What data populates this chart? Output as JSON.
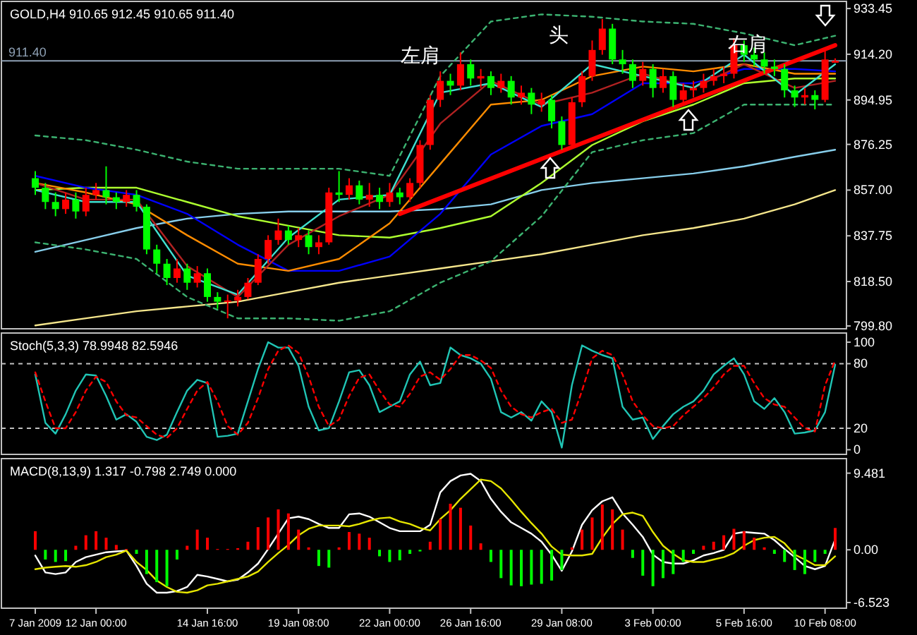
{
  "chart_data": [
    {
      "type": "candlestick",
      "title": "GOLD,H4  910.65 912.45 910.65 911.40",
      "tick_labels": "y",
      "categories": [
        null,
        null,
        null,
        null,
        null,
        null,
        null,
        null,
        null,
        null,
        null,
        null,
        null,
        null,
        null,
        null,
        null,
        null,
        null,
        null,
        null,
        null,
        null,
        null,
        null,
        null,
        null,
        null,
        null,
        null,
        null,
        null,
        null,
        null,
        null,
        null,
        null,
        null,
        null,
        null,
        null,
        null,
        null,
        null,
        null,
        null,
        null,
        null,
        null,
        null,
        null,
        null,
        null,
        null,
        null,
        null,
        null,
        null,
        null,
        null,
        null,
        null,
        null,
        null,
        null,
        null,
        null,
        null,
        null,
        null,
        null,
        null,
        null,
        null,
        null,
        null,
        null,
        null,
        null,
        null
      ],
      "ylim": [
        798.6,
        936.45
      ],
      "yticks": [
        {
          "value": 933.45,
          "label": "933.45"
        },
        {
          "value": 914.2,
          "label": "914.20"
        },
        {
          "value": 894.95,
          "label": "894.95"
        },
        {
          "value": 876.25,
          "label": "876.25"
        },
        {
          "value": 857,
          "label": "857.00"
        },
        {
          "value": 837.75,
          "label": "837.75"
        },
        {
          "value": 818.5,
          "label": "818.50"
        },
        {
          "value": 799.8,
          "label": "799.80"
        }
      ],
      "ohlc": [
        [
          862,
          865,
          855,
          858
        ],
        [
          858,
          860,
          849,
          852
        ],
        [
          852,
          856,
          846,
          849
        ],
        [
          849,
          856,
          847,
          853
        ],
        [
          853,
          856,
          845,
          848
        ],
        [
          848,
          858,
          846,
          855
        ],
        [
          855,
          860,
          853,
          857
        ],
        [
          857,
          867,
          851,
          854
        ],
        [
          854,
          856,
          849,
          852
        ],
        [
          852,
          857,
          850,
          855
        ],
        [
          855,
          857,
          848,
          850
        ],
        [
          850,
          851,
          830,
          832
        ],
        [
          832,
          834,
          822,
          826
        ],
        [
          826,
          828,
          817,
          820
        ],
        [
          820,
          828,
          818,
          824
        ],
        [
          824,
          826,
          815,
          818
        ],
        [
          818,
          825,
          816,
          822
        ],
        [
          822,
          824,
          810,
          812
        ],
        [
          812,
          814,
          807,
          810
        ],
        [
          810,
          813,
          803,
          810.5
        ],
        [
          810.5,
          815,
          808,
          812
        ],
        [
          812,
          820,
          811,
          818
        ],
        [
          818,
          830,
          817,
          828
        ],
        [
          828,
          838,
          826,
          836
        ],
        [
          836,
          845,
          834,
          840
        ],
        [
          840,
          842,
          834,
          836
        ],
        [
          836,
          841,
          833,
          838
        ],
        [
          838,
          840,
          830,
          833
        ],
        [
          833,
          838,
          830,
          835
        ],
        [
          835,
          858,
          834,
          856
        ],
        [
          856,
          865,
          852,
          855
        ],
        [
          855,
          862,
          853,
          859
        ],
        [
          859,
          861,
          851,
          853
        ],
        [
          853,
          860,
          850,
          855
        ],
        [
          855,
          858,
          849,
          852
        ],
        [
          852,
          860,
          850,
          856
        ],
        [
          856,
          858,
          851,
          854
        ],
        [
          854,
          862,
          852,
          860
        ],
        [
          860,
          878,
          858,
          876
        ],
        [
          876,
          897,
          874,
          895
        ],
        [
          895,
          907,
          892,
          903
        ],
        [
          903,
          906,
          897,
          901
        ],
        [
          901,
          915,
          899,
          910
        ],
        [
          910,
          912,
          901,
          904
        ],
        [
          904,
          908,
          900,
          905
        ],
        [
          905,
          907,
          897,
          900
        ],
        [
          900,
          906,
          898,
          903
        ],
        [
          903,
          905,
          893,
          896
        ],
        [
          896,
          901,
          893,
          898
        ],
        [
          898,
          900,
          889,
          893
        ],
        [
          893,
          898,
          890,
          895
        ],
        [
          895,
          897,
          883,
          886
        ],
        [
          886,
          888,
          874,
          876
        ],
        [
          876,
          896,
          875,
          894
        ],
        [
          894,
          907,
          892,
          905
        ],
        [
          905,
          920,
          903,
          916
        ],
        [
          916,
          929,
          914,
          925
        ],
        [
          925,
          927,
          910,
          912
        ],
        [
          912,
          916,
          906,
          910
        ],
        [
          910,
          912,
          900,
          903
        ],
        [
          903,
          911,
          901,
          908
        ],
        [
          908,
          910,
          896,
          900
        ],
        [
          900,
          908,
          898,
          905
        ],
        [
          905,
          907,
          892,
          895
        ],
        [
          895,
          902,
          893,
          899
        ],
        [
          899,
          903,
          896,
          900
        ],
        [
          900,
          906,
          898,
          903
        ],
        [
          903,
          908,
          901,
          905
        ],
        [
          905,
          909,
          902,
          906
        ],
        [
          906,
          921,
          904,
          918
        ],
        [
          918,
          920,
          911,
          914
        ],
        [
          914,
          917,
          909,
          912
        ],
        [
          912,
          915,
          906,
          909
        ],
        [
          909,
          912,
          905,
          908
        ],
        [
          908,
          910,
          896,
          899
        ],
        [
          899,
          901,
          892,
          896
        ],
        [
          896,
          900,
          893,
          897
        ],
        [
          897,
          899,
          891,
          895
        ],
        [
          895,
          916,
          894,
          912
        ],
        [
          910.65,
          912.45,
          910.65,
          911.4
        ]
      ],
      "colors": [
        "#00ff00",
        "#00ff00",
        "#00ff00",
        "#ff0000",
        "#00ff00",
        "#ff0000",
        "#ff0000",
        "#00ff00",
        "#00ff00",
        "#ff0000",
        "#00ff00",
        "#00ff00",
        "#00ff00",
        "#00ff00",
        "#ff0000",
        "#00ff00",
        "#ff0000",
        "#00ff00",
        "#00ff00",
        "#ff0000",
        "#ff0000",
        "#ff0000",
        "#ff0000",
        "#ff0000",
        "#ff0000",
        "#00ff00",
        "#ff0000",
        "#00ff00",
        "#ff0000",
        "#ff0000",
        "#00ff00",
        "#ff0000",
        "#00ff00",
        "#ff0000",
        "#00ff00",
        "#ff0000",
        "#00ff00",
        "#ff0000",
        "#ff0000",
        "#ff0000",
        "#ff0000",
        "#00ff00",
        "#ff0000",
        "#00ff00",
        "#ff0000",
        "#00ff00",
        "#ff0000",
        "#00ff00",
        "#ff0000",
        "#00ff00",
        "#ff0000",
        "#00ff00",
        "#00ff00",
        "#ff0000",
        "#ff0000",
        "#ff0000",
        "#ff0000",
        "#00ff00",
        "#00ff00",
        "#00ff00",
        "#ff0000",
        "#00ff00",
        "#ff0000",
        "#00ff00",
        "#ff0000",
        "#ff0000",
        "#ff0000",
        "#ff0000",
        "#ff0000",
        "#ff0000",
        "#00ff00",
        "#00ff00",
        "#00ff00",
        "#00ff00",
        "#00ff00",
        "#00ff00",
        "#ff0000",
        "#00ff00",
        "#ff0000",
        "#ff0000"
      ],
      "series": [
        {
          "type": "line",
          "color": "#f5e68c",
          "values": [
            800,
            null,
            null,
            null,
            null,
            803,
            null,
            null,
            null,
            null,
            806,
            null,
            null,
            null,
            null,
            808,
            null,
            null,
            null,
            null,
            810,
            null,
            null,
            null,
            null,
            814,
            null,
            null,
            null,
            null,
            818,
            null,
            null,
            null,
            null,
            821,
            null,
            null,
            null,
            null,
            824,
            null,
            null,
            null,
            null,
            827,
            null,
            null,
            null,
            null,
            830,
            null,
            null,
            null,
            null,
            834,
            null,
            null,
            null,
            null,
            838,
            null,
            null,
            null,
            null,
            841,
            null,
            null,
            null,
            null,
            845,
            null,
            null,
            null,
            null,
            851,
            null,
            null,
            null,
            857
          ]
        },
        {
          "type": "line",
          "color": "#87ceeb",
          "values": [
            831,
            null,
            null,
            null,
            null,
            836,
            null,
            null,
            null,
            null,
            841,
            null,
            null,
            null,
            null,
            845,
            null,
            null,
            null,
            null,
            847,
            null,
            null,
            null,
            null,
            848,
            null,
            null,
            null,
            null,
            848,
            null,
            null,
            null,
            null,
            848,
            null,
            null,
            null,
            null,
            849,
            null,
            null,
            null,
            null,
            851,
            null,
            null,
            null,
            null,
            857,
            null,
            null,
            null,
            null,
            860,
            null,
            null,
            null,
            null,
            862,
            null,
            null,
            null,
            null,
            864,
            null,
            null,
            null,
            null,
            867,
            null,
            null,
            null,
            null,
            871,
            null,
            null,
            null,
            874
          ]
        },
        {
          "type": "line",
          "color": "#adff2f",
          "values": [
            857,
            null,
            null,
            null,
            null,
            858,
            null,
            null,
            null,
            null,
            858,
            null,
            null,
            null,
            null,
            852,
            null,
            null,
            null,
            null,
            846,
            null,
            null,
            null,
            null,
            842,
            null,
            null,
            null,
            null,
            838,
            null,
            null,
            null,
            null,
            837,
            null,
            null,
            null,
            null,
            841,
            null,
            null,
            null,
            null,
            846,
            null,
            null,
            null,
            null,
            860,
            null,
            null,
            null,
            null,
            876,
            null,
            null,
            null,
            null,
            886,
            null,
            null,
            null,
            null,
            893,
            null,
            null,
            null,
            null,
            902,
            null,
            null,
            null,
            null,
            904,
            null,
            null,
            null,
            904
          ]
        },
        {
          "type": "line",
          "color": "#0000ff",
          "values": [
            863,
            null,
            null,
            null,
            null,
            858,
            null,
            null,
            null,
            null,
            855,
            null,
            null,
            null,
            null,
            847,
            null,
            null,
            null,
            null,
            834,
            null,
            null,
            null,
            null,
            823,
            null,
            null,
            null,
            null,
            823,
            null,
            null,
            null,
            null,
            829,
            null,
            null,
            null,
            null,
            847,
            null,
            null,
            null,
            null,
            872,
            null,
            null,
            null,
            null,
            884,
            null,
            null,
            null,
            null,
            889,
            null,
            null,
            null,
            null,
            902,
            null,
            null,
            null,
            null,
            902,
            null,
            null,
            null,
            null,
            908,
            null,
            null,
            null,
            null,
            908,
            null,
            null,
            null,
            907
          ]
        },
        {
          "type": "line",
          "color": "#ff8c00",
          "values": [
            860,
            null,
            null,
            null,
            null,
            856,
            null,
            null,
            null,
            null,
            851,
            null,
            null,
            null,
            null,
            838,
            null,
            null,
            null,
            null,
            826,
            null,
            null,
            null,
            null,
            823,
            null,
            null,
            null,
            null,
            828,
            null,
            null,
            null,
            null,
            843,
            null,
            null,
            null,
            null,
            868,
            null,
            null,
            null,
            null,
            893,
            null,
            null,
            null,
            null,
            895,
            null,
            null,
            null,
            null,
            905,
            null,
            null,
            null,
            null,
            909,
            null,
            null,
            null,
            null,
            907,
            null,
            null,
            null,
            null,
            910,
            null,
            null,
            null,
            null,
            906,
            null,
            null,
            null,
            906
          ]
        },
        {
          "type": "line",
          "color": "#b22222",
          "values": [
            860,
            null,
            null,
            null,
            null,
            853,
            null,
            null,
            null,
            null,
            853,
            null,
            null,
            null,
            null,
            825,
            null,
            null,
            null,
            null,
            812,
            null,
            null,
            null,
            null,
            834,
            null,
            null,
            null,
            null,
            846,
            null,
            null,
            null,
            null,
            855,
            null,
            null,
            null,
            null,
            885,
            null,
            null,
            null,
            null,
            903,
            null,
            null,
            null,
            null,
            893,
            null,
            null,
            null,
            null,
            898,
            null,
            null,
            null,
            null,
            906,
            null,
            null,
            null,
            null,
            900,
            null,
            null,
            null,
            null,
            910,
            null,
            null,
            null,
            null,
            900,
            null,
            null,
            null,
            903
          ]
        },
        {
          "type": "line",
          "color": "#40e0d0",
          "values": [
            857,
            null,
            null,
            null,
            null,
            852,
            null,
            null,
            null,
            null,
            852,
            null,
            null,
            null,
            null,
            821,
            null,
            null,
            null,
            null,
            813,
            null,
            null,
            null,
            null,
            837,
            null,
            null,
            null,
            null,
            853,
            null,
            null,
            null,
            null,
            855,
            null,
            null,
            null,
            null,
            898,
            null,
            null,
            null,
            null,
            902,
            null,
            null,
            null,
            null,
            892,
            null,
            null,
            null,
            null,
            910,
            null,
            null,
            null,
            null,
            905,
            null,
            null,
            null,
            null,
            900,
            null,
            null,
            null,
            null,
            914,
            null,
            null,
            null,
            null,
            897,
            null,
            null,
            null,
            910
          ]
        },
        {
          "type": "line",
          "color": "#3cb371",
          "line_style": "dashed",
          "values": [
            880,
            null,
            null,
            null,
            null,
            878,
            null,
            null,
            null,
            null,
            874,
            null,
            null,
            null,
            null,
            869,
            null,
            null,
            null,
            null,
            866,
            null,
            null,
            null,
            null,
            866,
            null,
            null,
            null,
            null,
            866,
            null,
            null,
            null,
            null,
            863,
            null,
            null,
            null,
            null,
            905,
            null,
            null,
            null,
            null,
            928,
            null,
            null,
            null,
            null,
            931,
            null,
            null,
            null,
            null,
            930,
            null,
            null,
            null,
            null,
            928,
            null,
            null,
            null,
            null,
            927,
            null,
            null,
            null,
            null,
            923,
            null,
            null,
            null,
            null,
            918,
            null,
            null,
            null,
            922
          ]
        },
        {
          "type": "line",
          "color": "#3cb371",
          "line_style": "dashed",
          "values": [
            835,
            null,
            null,
            null,
            null,
            832,
            null,
            null,
            null,
            null,
            828,
            null,
            null,
            null,
            null,
            812,
            null,
            null,
            null,
            null,
            803,
            null,
            null,
            null,
            null,
            803,
            null,
            null,
            null,
            null,
            802,
            null,
            null,
            null,
            null,
            806,
            null,
            null,
            null,
            null,
            818,
            null,
            null,
            null,
            null,
            827,
            null,
            null,
            null,
            null,
            846,
            null,
            null,
            null,
            null,
            873,
            null,
            null,
            null,
            null,
            878,
            null,
            null,
            null,
            null,
            881,
            null,
            null,
            null,
            null,
            893,
            null,
            null,
            null,
            null,
            893,
            null,
            null,
            null,
            893
          ]
        },
        {
          "type": "line",
          "color": "#ff0000",
          "values": [
            null,
            null,
            null,
            null,
            null,
            null,
            null,
            null,
            null,
            null,
            null,
            null,
            null,
            null,
            null,
            null,
            null,
            null,
            null,
            null,
            null,
            null,
            null,
            null,
            null,
            null,
            null,
            null,
            null,
            null,
            null,
            null,
            null,
            null,
            null,
            null,
            847,
            null,
            null,
            null,
            null,
            null,
            null,
            null,
            null,
            null,
            null,
            null,
            null,
            null,
            null,
            null,
            null,
            null,
            null,
            null,
            null,
            null,
            null,
            null,
            null,
            null,
            null,
            null,
            null,
            null,
            null,
            null,
            null,
            null,
            null,
            null,
            null,
            null,
            null,
            null,
            null,
            null,
            null,
            918
          ]
        }
      ],
      "ref_lines": [
        {
          "axis": "y",
          "value": 911.4,
          "label": "911.40",
          "color": "#8ea0b4"
        }
      ],
      "annotations": [
        "左肩",
        {
          "text": "头",
          "y": 929
        },
        {
          "text": "右肩",
          "y": 921
        }
      ]
    },
    {
      "type": "line",
      "title": "Stoch(5,3,3) 78.9948 82.5946",
      "tick_labels": "y",
      "categories": [
        null,
        null,
        null,
        null,
        null,
        null,
        null,
        null,
        null,
        null,
        null,
        null,
        null,
        null,
        null,
        null,
        null,
        null,
        null,
        null,
        null,
        null,
        null,
        null,
        null,
        null,
        null,
        null,
        null,
        null,
        null,
        null,
        null,
        null,
        null,
        null,
        null,
        null,
        null,
        null,
        null,
        null,
        null,
        null,
        null,
        null,
        null,
        null,
        null,
        null,
        null,
        null,
        null,
        null,
        null,
        null,
        null,
        null,
        null,
        null,
        null,
        null,
        null,
        null,
        null,
        null,
        null,
        null,
        null,
        null,
        null,
        null,
        null,
        null,
        null,
        null,
        null,
        null,
        null,
        null
      ],
      "ylim": [
        -4.3,
        108.5
      ],
      "yticks": [
        0,
        20,
        80,
        100
      ],
      "series": [
        {
          "color": "#20c5b5",
          "values": [
            70,
            25,
            15,
            33,
            55,
            70,
            69,
            50,
            28,
            33,
            26,
            12,
            9,
            14,
            35,
            55,
            65,
            62,
            12,
            13,
            15,
            45,
            75,
            100,
            95,
            95,
            78,
            40,
            18,
            20,
            45,
            72,
            74,
            60,
            35,
            40,
            45,
            70,
            82,
            60,
            62,
            95,
            88,
            85,
            80,
            66,
            35,
            30,
            35,
            27,
            45,
            35,
            2,
            60,
            97,
            92,
            88,
            85,
            40,
            28,
            30,
            10,
            22,
            33,
            40,
            45,
            55,
            70,
            78,
            85,
            70,
            45,
            38,
            48,
            35,
            15,
            16,
            18,
            35,
            79
          ]
        },
        {
          "color": "#ff0000",
          "line_style": "dashed",
          "values": [
            72,
            45,
            20,
            20,
            35,
            55,
            68,
            63,
            45,
            32,
            30,
            22,
            14,
            11,
            20,
            38,
            55,
            63,
            45,
            22,
            14,
            25,
            48,
            75,
            92,
            97,
            90,
            68,
            40,
            22,
            28,
            50,
            67,
            70,
            55,
            42,
            40,
            52,
            68,
            72,
            65,
            75,
            88,
            88,
            83,
            76,
            55,
            40,
            33,
            30,
            35,
            38,
            25,
            28,
            55,
            85,
            92,
            88,
            70,
            45,
            32,
            22,
            20,
            22,
            32,
            40,
            48,
            58,
            70,
            78,
            78,
            62,
            48,
            42,
            40,
            30,
            20,
            17,
            60,
            83
          ]
        }
      ],
      "ref_lines": [
        {
          "axis": "y",
          "value": 20,
          "color": "#c0c0c0",
          "line_style": "dashed"
        },
        {
          "axis": "y",
          "value": 80,
          "color": "#c0c0c0",
          "line_style": "dashed"
        }
      ]
    },
    {
      "type": "bar",
      "title": "MACD(8,13,9) 1.317 -0.798 2.749 0.000",
      "categories": [
        "7 Jan 2009",
        null,
        null,
        null,
        null,
        null,
        "12 Jan 00:00",
        null,
        null,
        null,
        null,
        null,
        null,
        null,
        null,
        null,
        null,
        "14 Jan 16:00",
        null,
        null,
        null,
        null,
        null,
        null,
        null,
        null,
        "19 Jan 08:00",
        null,
        null,
        null,
        null,
        null,
        null,
        null,
        null,
        "22 Jan 00:00",
        null,
        null,
        null,
        null,
        null,
        null,
        null,
        "26 Jan 16:00",
        null,
        null,
        null,
        null,
        null,
        null,
        null,
        null,
        "29 Jan 08:00",
        null,
        null,
        null,
        null,
        null,
        null,
        null,
        null,
        "3 Feb 00:00",
        null,
        null,
        null,
        null,
        null,
        null,
        null,
        null,
        "5 Feb 16:00",
        null,
        null,
        null,
        null,
        null,
        null,
        null,
        "10 Feb 08:00",
        null
      ],
      "ylim": [
        -7.22,
        11.28
      ],
      "yticks": [
        {
          "value": 9.481,
          "label": "9.481"
        },
        {
          "value": 0,
          "label": "0.00"
        },
        {
          "value": -6.523,
          "label": "-6.523"
        }
      ],
      "series": [
        {
          "type": "bar",
          "values": [
            2.3,
            -1.2,
            -1.5,
            -1.4,
            0.5,
            1.8,
            2.3,
            1.5,
            0.6,
            0.1,
            -0.5,
            -3.0,
            -4.0,
            -4.5,
            -1.2,
            0.5,
            2.5,
            1.5,
            0.1,
            0.1,
            0.2,
            1.0,
            2.8,
            4.0,
            5.0,
            4.5,
            2.5,
            0.3,
            -2.0,
            -2.2,
            0.3,
            2.2,
            2.0,
            1.5,
            -0.8,
            -1.5,
            -1.3,
            -0.5,
            -0.2,
            1.0,
            3.8,
            5.7,
            5.2,
            3.0,
            0.8,
            -1.5,
            -3.5,
            -4.4,
            -4.5,
            -4.3,
            -4.2,
            -3.8,
            -2.5,
            0.3,
            2.5,
            4.0,
            5.6,
            5.0,
            2.5,
            -1.0,
            -3.2,
            -4.5,
            -3.5,
            -3.0,
            -1.5,
            -0.5,
            0.5,
            1.0,
            1.8,
            2.6,
            2.3,
            1.5,
            0.3,
            -0.5,
            -1.5,
            -2.5,
            -3.0,
            -1.5,
            -0.5,
            2.7
          ],
          "colors": [
            "#ff0000",
            "#00ff00",
            "#00ff00",
            "#00ff00",
            "#ff0000",
            "#ff0000",
            "#ff0000",
            "#ff0000",
            "#ff0000",
            "#ff0000",
            "#00ff00",
            "#00ff00",
            "#00ff00",
            "#00ff00",
            "#00ff00",
            "#ff0000",
            "#ff0000",
            "#ff0000",
            "#ff0000",
            "#ff0000",
            "#ff0000",
            "#ff0000",
            "#ff0000",
            "#ff0000",
            "#ff0000",
            "#ff0000",
            "#ff0000",
            "#ff0000",
            "#00ff00",
            "#00ff00",
            "#ff0000",
            "#ff0000",
            "#ff0000",
            "#ff0000",
            "#00ff00",
            "#00ff00",
            "#00ff00",
            "#00ff00",
            "#00ff00",
            "#ff0000",
            "#ff0000",
            "#ff0000",
            "#ff0000",
            "#ff0000",
            "#ff0000",
            "#00ff00",
            "#00ff00",
            "#00ff00",
            "#00ff00",
            "#00ff00",
            "#00ff00",
            "#00ff00",
            "#00ff00",
            "#ff0000",
            "#ff0000",
            "#ff0000",
            "#ff0000",
            "#ff0000",
            "#ff0000",
            "#00ff00",
            "#00ff00",
            "#00ff00",
            "#00ff00",
            "#00ff00",
            "#00ff00",
            "#00ff00",
            "#ff0000",
            "#ff0000",
            "#ff0000",
            "#ff0000",
            "#ff0000",
            "#ff0000",
            "#ff0000",
            "#00ff00",
            "#00ff00",
            "#00ff00",
            "#00ff00",
            "#00ff00",
            "#00ff00",
            "#ff0000"
          ]
        },
        {
          "type": "line",
          "color": "#ffffff",
          "values": [
            -0.7,
            -2.8,
            -3.0,
            -2.8,
            -1.5,
            -0.9,
            -0.6,
            -0.3,
            -0.2,
            -0.1,
            -2.0,
            -4.2,
            -5.3,
            -5.3,
            -5.1,
            -4.6,
            -3.1,
            -3.3,
            -3.6,
            -3.9,
            -3.7,
            -2.8,
            -1.7,
            0.1,
            2.0,
            3.9,
            4.1,
            3.8,
            3.2,
            2.7,
            2.7,
            4.4,
            4.5,
            4.1,
            3.4,
            2.7,
            2.3,
            2.3,
            2.3,
            3.1,
            7.1,
            8.5,
            9.2,
            9.4,
            8.5,
            6.3,
            4.7,
            3.4,
            2.7,
            2.0,
            1.0,
            -0.6,
            -2.6,
            -0.2,
            3.1,
            4.9,
            6.0,
            6.5,
            4.5,
            3.1,
            1.6,
            -0.6,
            -1.5,
            -1.7,
            -1.7,
            -1.3,
            -0.7,
            -0.4,
            0.0,
            2.0,
            2.2,
            2.1,
            2.0,
            1.2,
            0.1,
            -0.9,
            -2.0,
            -2.4,
            -2.0,
            1.3
          ]
        },
        {
          "type": "line",
          "color": "#e6e600",
          "values": [
            -2.4,
            -2.2,
            -2.1,
            -2.0,
            -2.1,
            -1.9,
            -1.5,
            -0.9,
            -0.6,
            -0.1,
            -1.5,
            -2.5,
            -3.8,
            -4.6,
            -5.2,
            -5.3,
            -5.0,
            -4.4,
            -4.2,
            -3.9,
            -3.6,
            -3.3,
            -2.7,
            -1.5,
            -0.4,
            0.6,
            1.8,
            2.6,
            3.0,
            3.0,
            3.0,
            2.9,
            3.2,
            3.6,
            3.9,
            4.0,
            3.5,
            3.2,
            2.7,
            2.4,
            3.8,
            4.9,
            6.3,
            7.5,
            8.7,
            8.5,
            7.6,
            6.2,
            4.7,
            3.3,
            2.0,
            0.4,
            -0.6,
            -0.7,
            -0.7,
            -0.5,
            1.5,
            3.2,
            4.4,
            4.6,
            4.2,
            2.2,
            0.5,
            -0.5,
            -1.3,
            -1.5,
            -1.5,
            -1.2,
            -0.9,
            -0.4,
            0.5,
            1.2,
            1.5,
            1.6,
            0.8,
            -0.6,
            -1.2,
            -1.9,
            -1.9,
            -0.8
          ]
        }
      ]
    }
  ]
}
